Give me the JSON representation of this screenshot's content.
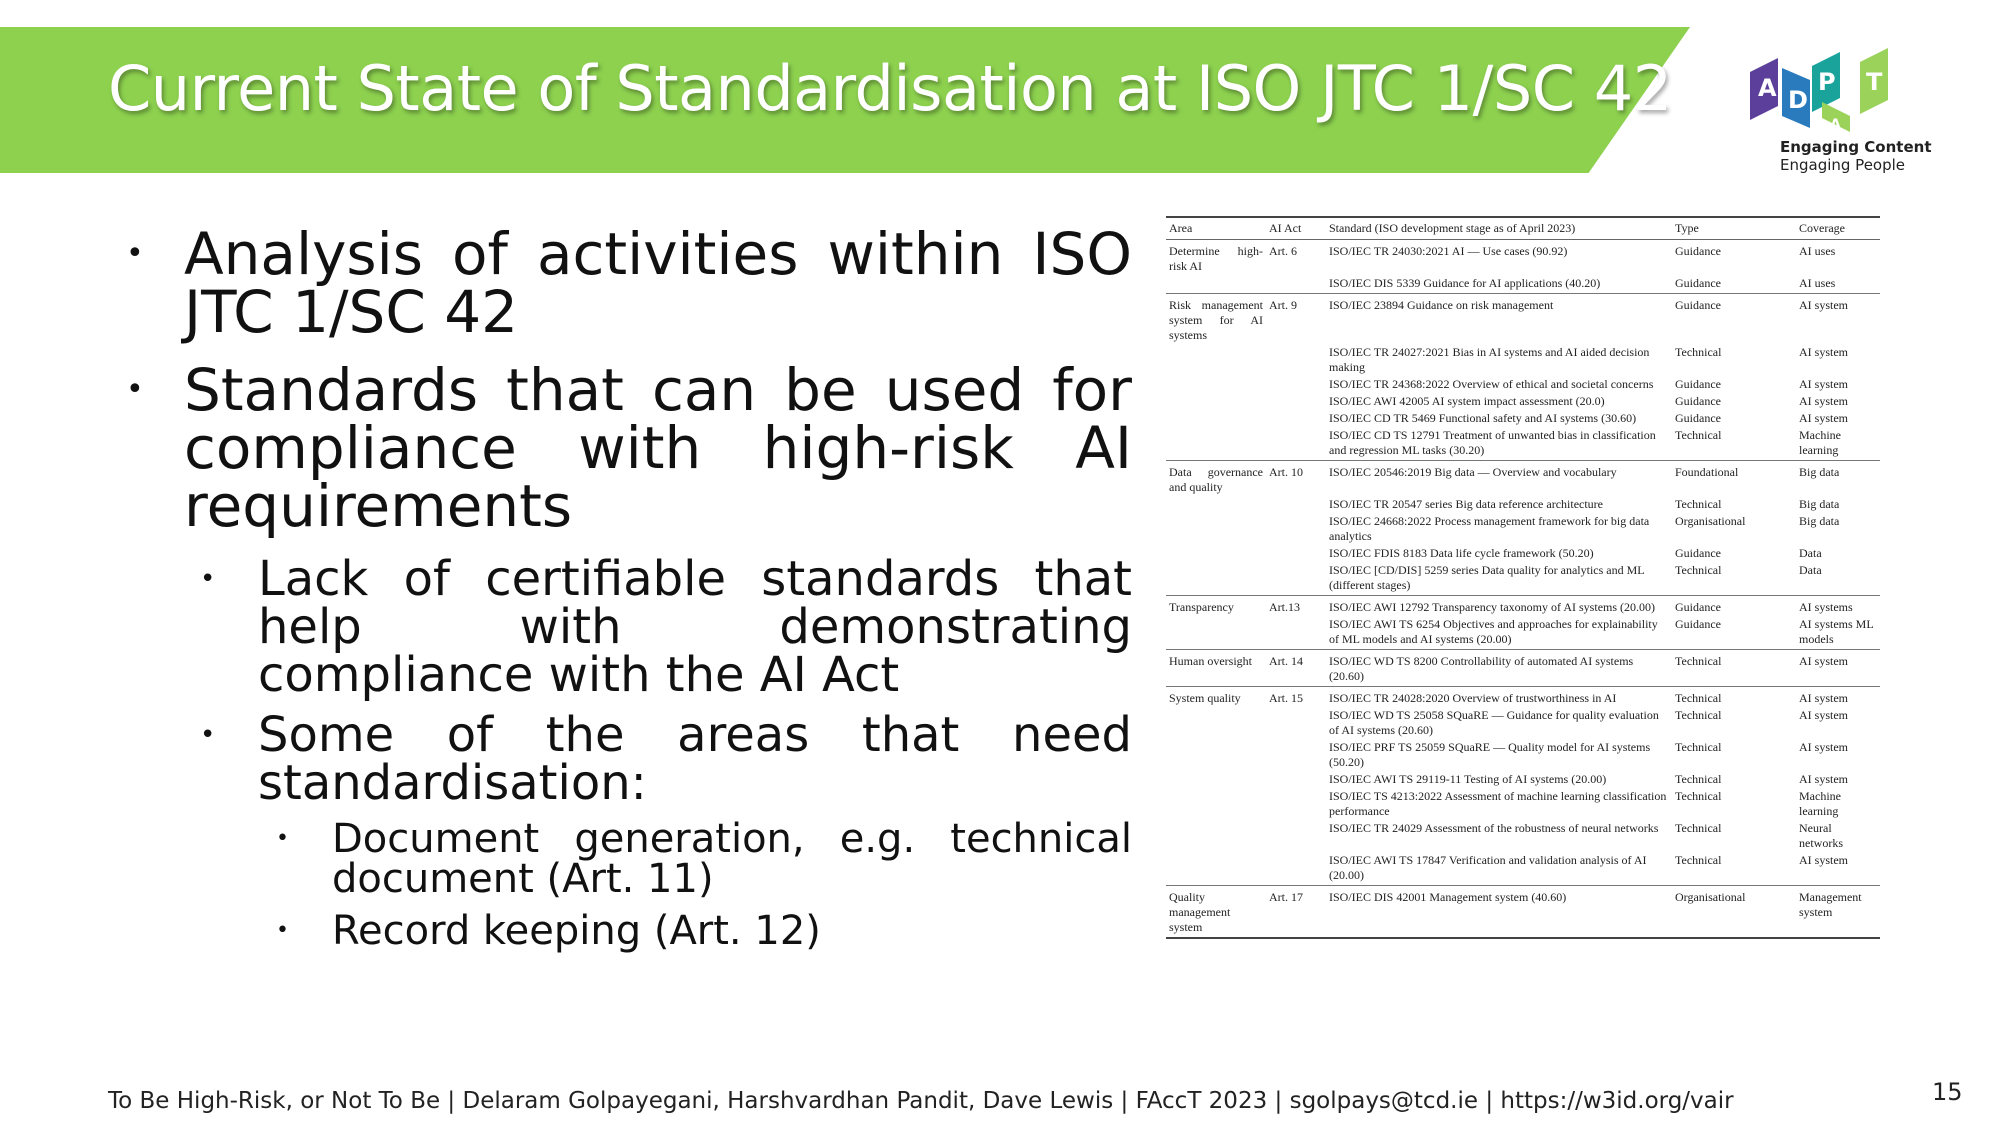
{
  "slide": {
    "title": "Current State of Standardisation at ISO JTC 1/SC 42",
    "page_number": "15",
    "footer": "To Be High-Risk, or Not To Be | Delaram Golpayegani, Harshvardhan Pandit, Dave Lewis | FAccT 2023 | sgolpays@tcd.ie | https://w3id.org/vair"
  },
  "logo": {
    "letters": [
      "A",
      "D",
      "A",
      "P",
      "T"
    ],
    "line1": "Engaging Content",
    "line2": "Engaging People",
    "colors": {
      "purple": "#5b3f9a",
      "blue": "#2a7bbd",
      "teal": "#1aa39a",
      "green": "#9bd35a"
    }
  },
  "bullets": [
    {
      "level": 1,
      "text": "Analysis of activities within ISO JTC 1/SC 42"
    },
    {
      "level": 1,
      "text": " Standards that can be used for compliance with high-risk AI requirements"
    },
    {
      "level": 2,
      "text": "Lack of certifiable standards that help with demonstrating compliance with the AI Act"
    },
    {
      "level": 2,
      "text": "Some of the areas that need standardisation:"
    },
    {
      "level": 3,
      "text": "Document generation, e.g. technical document (Art. 11)"
    },
    {
      "level": 3,
      "text": "Record keeping (Art. 12)"
    }
  ],
  "table": {
    "headers": [
      "Area",
      "AI Act",
      "Standard (ISO development stage as of April 2023)",
      "Type",
      "Coverage"
    ],
    "rows": [
      [
        "Determine high-risk AI",
        "Art. 6",
        "ISO/IEC TR 24030:2021 AI — Use cases (90.92)",
        "Guidance",
        "AI uses"
      ],
      [
        "",
        "",
        "ISO/IEC DIS 5339 Guidance for AI applications (40.20)",
        "Guidance",
        "AI uses"
      ],
      [
        "Risk management system for AI systems",
        "Art. 9",
        "ISO/IEC 23894 Guidance on risk management",
        "Guidance",
        "AI system"
      ],
      [
        "",
        "",
        "ISO/IEC TR 24027:2021 Bias in AI systems and AI aided decision making",
        "Technical",
        "AI system"
      ],
      [
        "",
        "",
        "ISO/IEC TR 24368:2022 Overview of ethical and societal concerns",
        "Guidance",
        "AI system"
      ],
      [
        "",
        "",
        "ISO/IEC AWI 42005 AI system impact assessment (20.0)",
        "Guidance",
        "AI system"
      ],
      [
        "",
        "",
        "ISO/IEC CD TR 5469 Functional safety and AI systems (30.60)",
        "Guidance",
        "AI system"
      ],
      [
        "",
        "",
        "ISO/IEC CD TS 12791 Treatment of unwanted bias in classification and regression ML tasks (30.20)",
        "Technical",
        "Machine learning"
      ],
      [
        "Data governance and quality",
        "Art. 10",
        "ISO/IEC 20546:2019 Big data — Overview and vocabulary",
        "Foundational",
        "Big data"
      ],
      [
        "",
        "",
        "ISO/IEC TR 20547 series Big data reference architecture",
        "Technical",
        "Big data"
      ],
      [
        "",
        "",
        "ISO/IEC 24668:2022 Process management framework for big data analytics",
        "Organisational",
        "Big data"
      ],
      [
        "",
        "",
        "ISO/IEC FDIS 8183 Data life cycle framework (50.20)",
        "Guidance",
        "Data"
      ],
      [
        "",
        "",
        "ISO/IEC [CD/DIS] 5259 series Data quality for analytics and ML (different stages)",
        "Technical",
        "Data"
      ],
      [
        "Transparency",
        "Art.13",
        "ISO/IEC AWI 12792 Transparency taxonomy of AI systems (20.00)",
        "Guidance",
        "AI systems"
      ],
      [
        "",
        "",
        "ISO/IEC AWI TS 6254 Objectives and approaches for explainability of ML models and AI systems (20.00)",
        "Guidance",
        "AI systems ML models"
      ],
      [
        "Human oversight",
        "Art. 14",
        "ISO/IEC WD TS 8200 Controllability of automated AI systems (20.60)",
        "Technical",
        "AI system"
      ],
      [
        "System quality",
        "Art. 15",
        "ISO/IEC TR 24028:2020 Overview of trustworthiness in AI",
        "Technical",
        "AI system"
      ],
      [
        "",
        "",
        "ISO/IEC WD TS 25058 SQuaRE — Guidance for quality evaluation of AI systems (20.60)",
        "Technical",
        "AI system"
      ],
      [
        "",
        "",
        "ISO/IEC PRF TS 25059 SQuaRE — Quality model for AI systems (50.20)",
        "Technical",
        "AI system"
      ],
      [
        "",
        "",
        "ISO/IEC AWI TS 29119-11 Testing of AI systems (20.00)",
        "Technical",
        "AI system"
      ],
      [
        "",
        "",
        "ISO/IEC TS 4213:2022 Assessment of machine learning classification performance",
        "Technical",
        "Machine learning"
      ],
      [
        "",
        "",
        "ISO/IEC TR 24029 Assessment of the robustness of neural networks",
        "Technical",
        "Neural networks"
      ],
      [
        "",
        "",
        "ISO/IEC AWI TS 17847 Verification and validation analysis of AI (20.00)",
        "Technical",
        "AI system"
      ],
      [
        "Quality management system",
        "Art. 17",
        "ISO/IEC DIS 42001 Management system (40.60)",
        "Organisational",
        "Management system"
      ]
    ]
  }
}
